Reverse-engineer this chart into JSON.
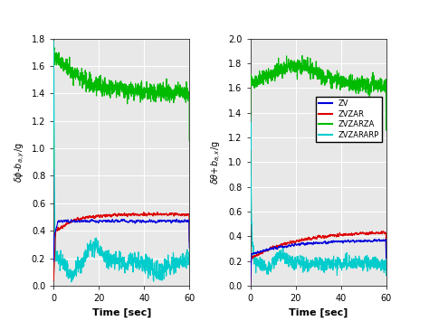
{
  "left_ylabel": "δφ-b_{a,y}/g",
  "right_ylabel": "δθ+b_{a,x}/g",
  "xlabel": "Time [sec]",
  "xlim": [
    0,
    60
  ],
  "left_ylim": [
    0,
    1.8
  ],
  "right_ylim": [
    0,
    2.0
  ],
  "left_yticks": [
    0,
    0.2,
    0.4,
    0.6,
    0.8,
    1.0,
    1.2,
    1.4,
    1.6,
    1.8
  ],
  "right_yticks": [
    0,
    0.2,
    0.4,
    0.6,
    0.8,
    1.0,
    1.2,
    1.4,
    1.6,
    1.8,
    2.0
  ],
  "xticks": [
    0,
    20,
    40,
    60
  ],
  "legend_labels": [
    "ZV",
    "ZVZAR",
    "ZVZARZA",
    "ZVZARARP"
  ],
  "colors": {
    "ZV": "#0000dd",
    "ZVZAR": "#dd0000",
    "ZVZARZA": "#00bb00",
    "ZVZARARP": "#00cccc"
  },
  "background_color": "#e8e8e8",
  "grid_color": "#ffffff",
  "seed": 42
}
